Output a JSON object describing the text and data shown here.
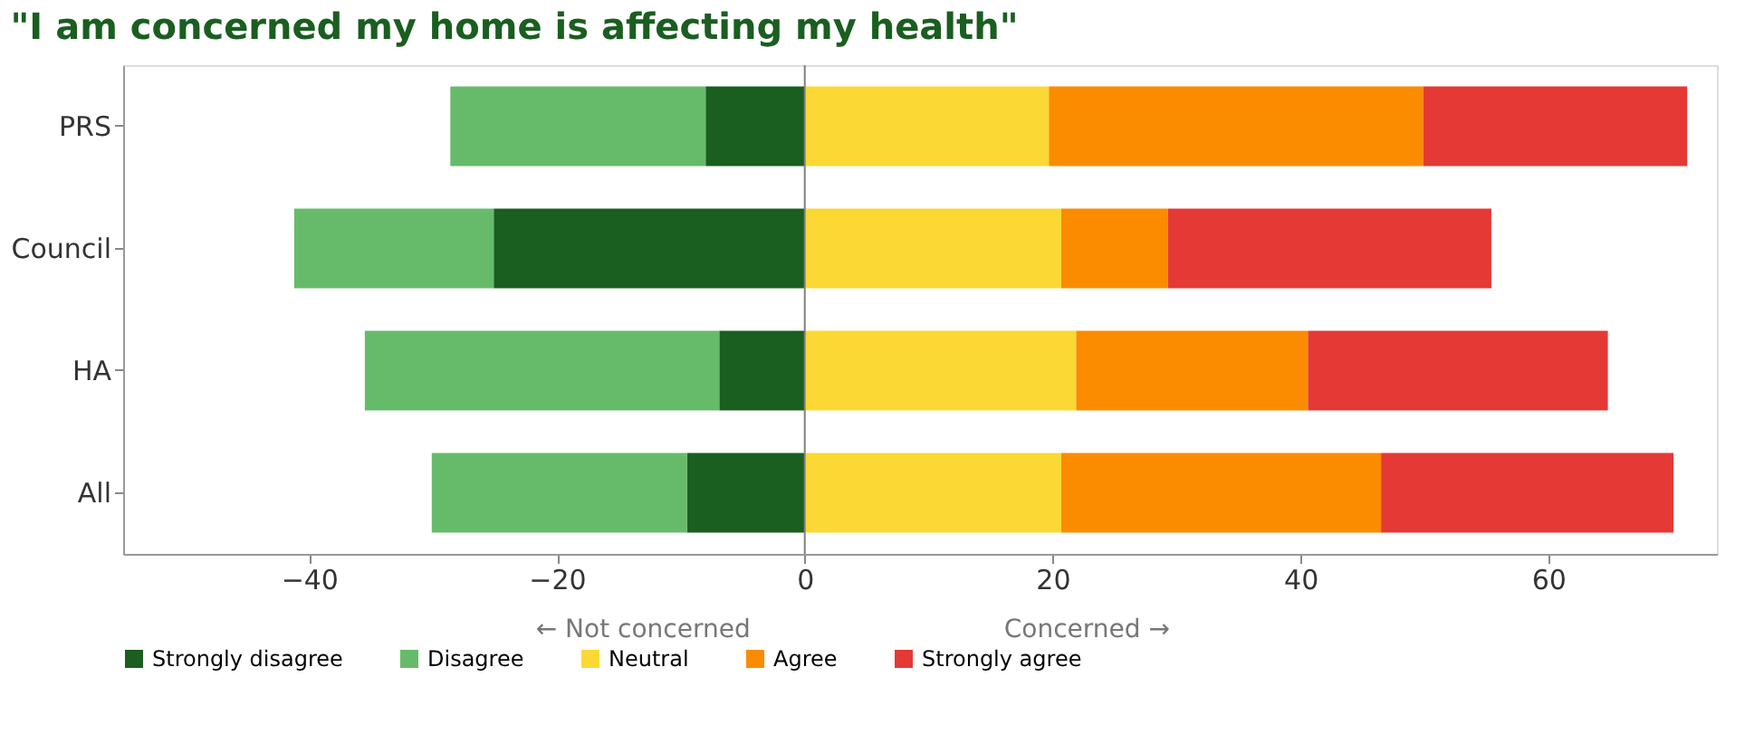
{
  "chart_data": {
    "type": "bar",
    "orientation": "horizontal",
    "stacked": true,
    "title": "\"I am concerned my home is affecting my health\"",
    "categories": [
      "PRS",
      "Council",
      "HA",
      "All"
    ],
    "series": [
      {
        "name": "Strongly disagree",
        "color": "#1a5e20",
        "values": [
          -8.0,
          -25.1,
          -6.9,
          -9.5
        ]
      },
      {
        "name": "Disagree",
        "color": "#66bb6a",
        "values": [
          -20.6,
          -16.1,
          -28.6,
          -20.6
        ]
      },
      {
        "name": "Neutral",
        "color": "#fbd834",
        "values": [
          19.7,
          20.7,
          21.9,
          20.7
        ]
      },
      {
        "name": "Agree",
        "color": "#fb8c00",
        "values": [
          30.2,
          8.6,
          18.7,
          25.8
        ]
      },
      {
        "name": "Strongly agree",
        "color": "#e53935",
        "values": [
          21.3,
          26.1,
          24.2,
          23.6
        ]
      }
    ],
    "xlim": [
      -55,
      73.6
    ],
    "xticks": [
      -40,
      -20,
      0,
      20,
      40,
      60
    ],
    "ref_lines": [
      {
        "axis": "x",
        "value": 0,
        "color": "#808080"
      }
    ],
    "annotations": [
      "← Not concerned",
      "Concerned →"
    ],
    "legend": "bottom",
    "grid": false
  }
}
